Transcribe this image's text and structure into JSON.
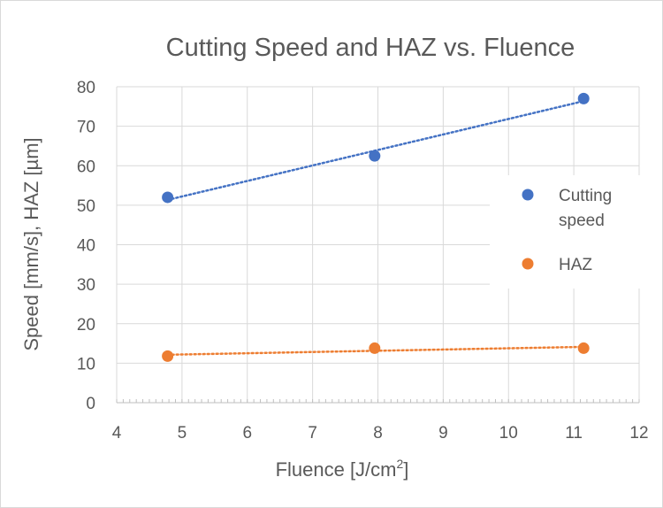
{
  "chart_data": {
    "type": "scatter",
    "title": "Cutting Speed and HAZ vs. Fluence",
    "xlabel": "Fluence [J/cm",
    "xlabel_superscript": "2",
    "xlabel_suffix": "]",
    "ylabel": "Speed [mm/s], HAZ [µm]",
    "xlim": [
      4,
      12
    ],
    "ylim": [
      0,
      80
    ],
    "xticks": [
      4,
      5,
      6,
      7,
      8,
      9,
      10,
      11,
      12
    ],
    "yticks": [
      0,
      10,
      20,
      30,
      40,
      50,
      60,
      70,
      80
    ],
    "grid": true,
    "legend_position": "right",
    "series": [
      {
        "name": "Cutting speed",
        "name_lines": [
          "Cutting",
          "speed"
        ],
        "color": "#4472c4",
        "x": [
          4.78,
          7.95,
          11.15
        ],
        "y": [
          52,
          62.5,
          77
        ],
        "trendline": "linear-dotted"
      },
      {
        "name": "HAZ",
        "name_lines": [
          "HAZ"
        ],
        "color": "#ed7d31",
        "x": [
          4.78,
          7.95,
          11.15
        ],
        "y": [
          11.8,
          13.8,
          13.8
        ],
        "trendline": "linear-dotted"
      }
    ]
  }
}
